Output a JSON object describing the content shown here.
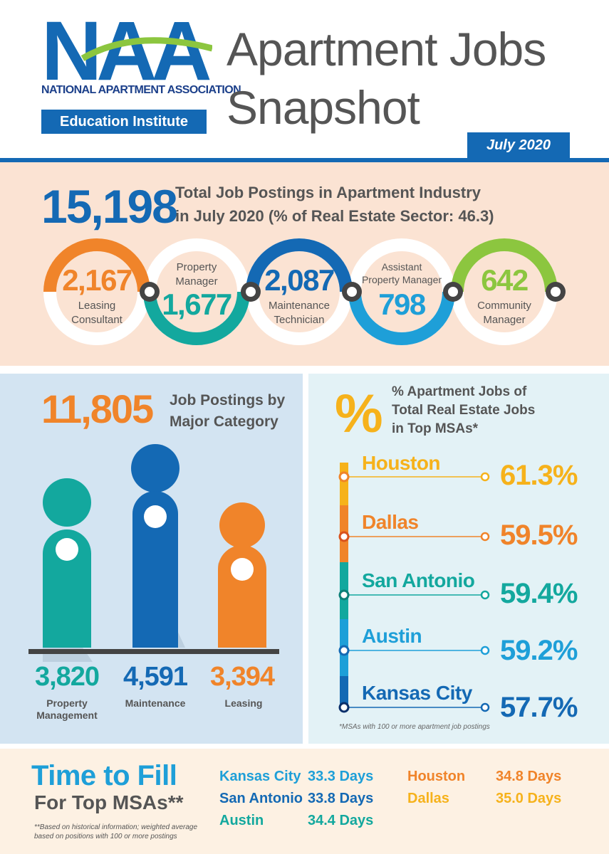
{
  "header": {
    "logo_letters": "NAA",
    "logo_org": "NATIONAL APARTMENT ASSOCIATION",
    "logo_institute": "Education Institute",
    "title_line1": "Apartment Jobs",
    "title_line2": "Snapshot",
    "date": "July 2020"
  },
  "total": {
    "value": "15,198",
    "line1": "Total Job Postings in Apartment Industry",
    "line2": "in July 2020 (% of Real Estate Sector: 46.3)"
  },
  "rings": [
    {
      "value": "2,167",
      "label1": "Leasing",
      "label2": "Consultant",
      "color": "#f0842a"
    },
    {
      "value": "1,677",
      "label1": "Property",
      "label2": "Manager",
      "color": "#13a89e"
    },
    {
      "value": "2,087",
      "label1": "Maintenance",
      "label2": "Technician",
      "color": "#1469b4"
    },
    {
      "value": "798",
      "label1": "Assistant",
      "label2": "Property Manager",
      "color": "#1e9fd8"
    },
    {
      "value": "642",
      "label1": "Community",
      "label2": "Manager",
      "color": "#8cc63f"
    }
  ],
  "major": {
    "value": "11,805",
    "line1": "Job Postings by",
    "line2": "Major Category",
    "categories": [
      {
        "value": "3,820",
        "label1": "Property",
        "label2": "Management",
        "color": "#13a89e"
      },
      {
        "value": "4,591",
        "label1": "Maintenance",
        "label2": "",
        "color": "#1469b4"
      },
      {
        "value": "3,394",
        "label1": "Leasing",
        "label2": "",
        "color": "#f0842a"
      }
    ]
  },
  "msa": {
    "symbol": "%",
    "line1": "% Apartment Jobs of",
    "line2": "Total Real Estate Jobs",
    "line3": "in Top MSAs*",
    "items": [
      {
        "city": "Houston",
        "pct": "61.3%",
        "color": "#f6b21b"
      },
      {
        "city": "Dallas",
        "pct": "59.5%",
        "color": "#f0842a"
      },
      {
        "city": "San Antonio",
        "pct": "59.4%",
        "color": "#13a89e"
      },
      {
        "city": "Austin",
        "pct": "59.2%",
        "color": "#1e9fd8"
      },
      {
        "city": "Kansas City",
        "pct": "57.7%",
        "color": "#1469b4"
      }
    ],
    "note": "*MSAs with 100 or more apartment job postings"
  },
  "fill": {
    "title": "Time to Fill",
    "subtitle": "For Top MSAs**",
    "note": "**Based on historical information; weighted average based on positions with 100 or more postings",
    "left": [
      {
        "city": "Kansas City",
        "days": "33.3 Days",
        "color": "#1e9fd8"
      },
      {
        "city": "San Antonio",
        "days": "33.8 Days",
        "color": "#1469b4"
      },
      {
        "city": "Austin",
        "days": "34.4 Days",
        "color": "#13a89e"
      }
    ],
    "right": [
      {
        "city": "Houston",
        "days": "34.8 Days",
        "color": "#f0842a"
      },
      {
        "city": "Dallas",
        "days": "35.0 Days",
        "color": "#f6b21b"
      }
    ]
  }
}
